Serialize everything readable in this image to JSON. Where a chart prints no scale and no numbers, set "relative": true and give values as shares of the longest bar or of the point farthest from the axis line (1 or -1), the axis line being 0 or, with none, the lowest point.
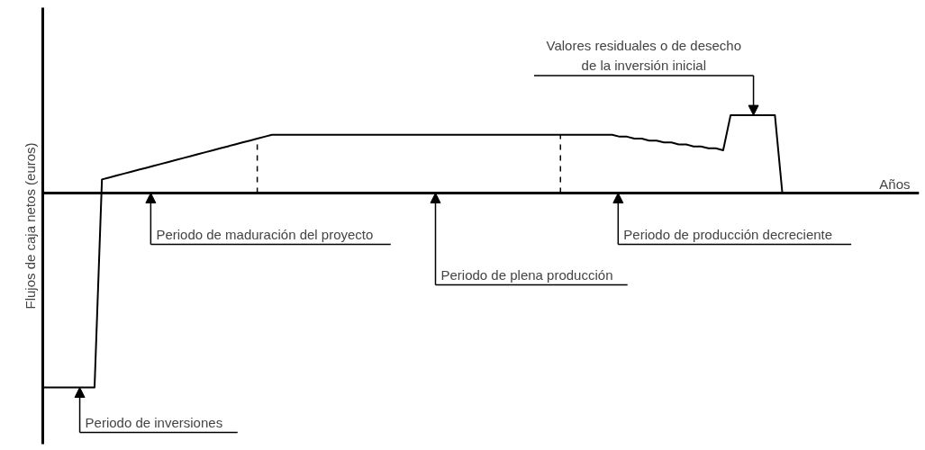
{
  "chart_data": {
    "type": "line",
    "relative": true,
    "ylabel": "Flujos de caja netos (euros)",
    "color": "#000000",
    "grid": false,
    "marker": "none",
    "line_style": "solid",
    "categories": [
      null,
      null,
      null,
      null,
      null,
      null,
      null,
      null,
      null,
      null,
      null,
      null,
      null,
      null,
      null,
      null,
      null,
      null,
      null,
      null,
      null,
      null,
      null,
      null,
      null,
      null,
      null,
      null,
      null,
      null,
      null,
      null,
      null,
      null,
      null,
      null,
      null,
      null,
      null,
      null,
      null,
      null,
      null,
      null,
      null,
      null,
      null,
      null,
      null,
      null,
      null,
      null,
      null,
      null,
      null,
      null,
      null,
      null,
      null,
      null,
      null,
      null,
      null,
      null,
      null,
      null,
      null,
      null,
      null,
      null,
      null,
      null,
      null,
      null,
      null,
      null,
      null,
      null,
      null,
      null,
      null,
      null,
      null,
      null,
      null,
      null,
      null,
      null,
      null,
      null,
      null,
      null,
      null,
      null,
      null,
      null,
      null,
      null,
      null,
      null,
      null
    ],
    "values": [
      -1,
      -1,
      -1,
      -1,
      -1,
      -1,
      -1,
      -1,
      0.07,
      0.08,
      0.09,
      0.1,
      0.11,
      0.12,
      0.13,
      0.14,
      0.15,
      0.16,
      0.17,
      0.18,
      0.19,
      0.2,
      0.21,
      0.22,
      0.23,
      0.24,
      0.25,
      0.26,
      0.27,
      0.28,
      0.29,
      0.3,
      0.3,
      0.3,
      0.3,
      0.3,
      0.3,
      0.3,
      0.3,
      0.3,
      0.3,
      0.3,
      0.3,
      0.3,
      0.3,
      0.3,
      0.3,
      0.3,
      0.3,
      0.3,
      0.3,
      0.3,
      0.3,
      0.3,
      0.3,
      0.3,
      0.3,
      0.3,
      0.3,
      0.3,
      0.3,
      0.3,
      0.3,
      0.3,
      0.3,
      0.3,
      0.3,
      0.3,
      0.3,
      0.3,
      0.3,
      0.3,
      0.3,
      0.3,
      0.3,
      0.3,
      0.3,
      0.3,
      0.29,
      0.29,
      0.28,
      0.28,
      0.27,
      0.27,
      0.26,
      0.26,
      0.25,
      0.25,
      0.24,
      0.24,
      0.23,
      0.23,
      0.22,
      0.4,
      0.4,
      0.4,
      0.4,
      0.4,
      0.4,
      0.4,
      0
    ],
    "annotations": [
      "Periodo de inversiones",
      "Periodo de maduración del proyecto",
      "Periodo de plena producción",
      "Periodo de producción decreciente",
      "Valores residuales o de desecho\nde la inversión inicial",
      "Años"
    ]
  }
}
